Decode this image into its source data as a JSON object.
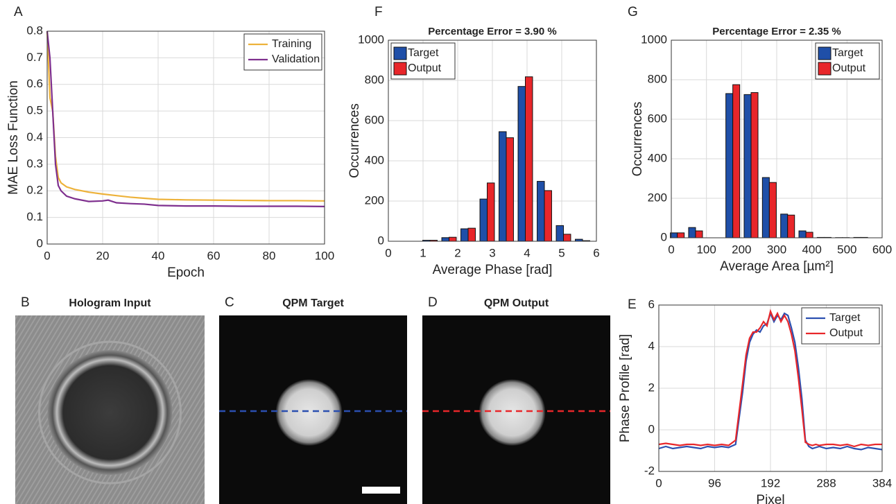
{
  "chart_data": [
    {
      "type": "line",
      "label": "A",
      "xlabel": "Epoch",
      "ylabel": "MAE Loss Function",
      "xlim": [
        0,
        100
      ],
      "xticks": [
        0,
        20,
        40,
        60,
        80,
        100
      ],
      "ylim": [
        0,
        0.8
      ],
      "yticks": [
        0,
        0.1,
        0.2,
        0.3,
        0.4,
        0.5,
        0.6,
        0.7,
        0.8
      ],
      "grid": true,
      "legend": "upper right",
      "series": [
        {
          "name": "Training",
          "color": "#edb23a",
          "x": [
            0,
            1,
            2,
            3,
            4,
            5,
            7,
            10,
            15,
            20,
            25,
            30,
            35,
            40,
            50,
            60,
            70,
            80,
            90,
            100
          ],
          "values": [
            0.8,
            0.55,
            0.5,
            0.33,
            0.25,
            0.23,
            0.215,
            0.205,
            0.195,
            0.188,
            0.182,
            0.176,
            0.172,
            0.168,
            0.166,
            0.165,
            0.164,
            0.163,
            0.163,
            0.162
          ]
        },
        {
          "name": "Validation",
          "color": "#7e2f8e",
          "x": [
            0,
            1,
            2,
            3,
            4,
            5,
            7,
            10,
            15,
            20,
            22,
            25,
            30,
            35,
            40,
            50,
            60,
            70,
            80,
            90,
            100
          ],
          "values": [
            0.8,
            0.7,
            0.5,
            0.3,
            0.22,
            0.2,
            0.18,
            0.17,
            0.16,
            0.162,
            0.165,
            0.155,
            0.152,
            0.15,
            0.145,
            0.143,
            0.143,
            0.142,
            0.142,
            0.142,
            0.141
          ]
        }
      ]
    },
    {
      "type": "bar",
      "label": "F",
      "title": "Percentage Error = 3.90 %",
      "xlabel": "Average Phase [rad]",
      "ylabel": "Occurrences",
      "xlim": [
        0,
        6
      ],
      "xticks": [
        0,
        1,
        2,
        3,
        4,
        5,
        6
      ],
      "ylim": [
        0,
        1000
      ],
      "yticks": [
        0,
        200,
        400,
        600,
        800,
        1000
      ],
      "grid": true,
      "legend": "upper left",
      "x": [
        1.2,
        1.75,
        2.3,
        2.85,
        3.4,
        3.95,
        4.5,
        5.05,
        5.6
      ],
      "series": [
        {
          "name": "Target",
          "color": "#1f4fa8",
          "values": [
            5,
            18,
            62,
            210,
            545,
            770,
            298,
            78,
            10
          ]
        },
        {
          "name": "Output",
          "color": "#e8262a",
          "values": [
            5,
            20,
            65,
            290,
            515,
            818,
            252,
            35,
            3
          ]
        }
      ]
    },
    {
      "type": "bar",
      "label": "G",
      "title": "Percentage Error = 2.35 %",
      "xlabel": "Average Area [µm²]",
      "ylabel": "Occurrences",
      "xlim": [
        0,
        600
      ],
      "xticks": [
        0,
        100,
        200,
        300,
        400,
        500,
        600
      ],
      "ylim": [
        0,
        1000
      ],
      "yticks": [
        0,
        200,
        400,
        600,
        800,
        1000
      ],
      "grid": true,
      "legend": "upper right",
      "x": [
        17,
        69,
        175,
        227,
        279,
        331,
        383,
        435,
        487,
        539
      ],
      "series": [
        {
          "name": "Target",
          "color": "#1f4fa8",
          "values": [
            25,
            52,
            730,
            725,
            305,
            120,
            35,
            2,
            1,
            2
          ]
        },
        {
          "name": "Output",
          "color": "#e8262a",
          "values": [
            25,
            35,
            775,
            735,
            280,
            115,
            28,
            2,
            1,
            2
          ]
        }
      ]
    },
    {
      "type": "image",
      "label": "B",
      "title": "Hologram Input",
      "style": "hologram"
    },
    {
      "type": "image",
      "label": "C",
      "title": "QPM Target",
      "style": "phase",
      "line_color": "#2b4fb0",
      "scale_bar": true
    },
    {
      "type": "image",
      "label": "D",
      "title": "QPM Output",
      "style": "phase",
      "line_color": "#e8262a",
      "scale_bar": false
    },
    {
      "type": "line",
      "label": "E",
      "xlabel": "Pixel",
      "ylabel": "Phase Profile [rad]",
      "xlim": [
        0,
        384
      ],
      "xticks": [
        0,
        96,
        192,
        288,
        384
      ],
      "ylim": [
        -2,
        6
      ],
      "yticks": [
        -2,
        0,
        2,
        4,
        6
      ],
      "grid": true,
      "legend": "upper right",
      "series": [
        {
          "name": "Target",
          "color": "#2b4fb0",
          "x": [
            0,
            12,
            24,
            36,
            48,
            60,
            72,
            84,
            96,
            108,
            120,
            132,
            144,
            150,
            156,
            162,
            168,
            174,
            180,
            186,
            192,
            198,
            204,
            210,
            216,
            222,
            228,
            234,
            240,
            246,
            252,
            258,
            264,
            270,
            276,
            288,
            300,
            312,
            324,
            336,
            348,
            360,
            372,
            384
          ],
          "values": [
            -0.9,
            -0.8,
            -0.9,
            -0.85,
            -0.8,
            -0.85,
            -0.9,
            -0.8,
            -0.85,
            -0.8,
            -0.85,
            -0.7,
            1.8,
            3.3,
            4.2,
            4.6,
            4.8,
            4.7,
            5.0,
            5.1,
            5.6,
            5.2,
            5.5,
            5.3,
            5.6,
            5.5,
            4.9,
            4.2,
            3.0,
            1.5,
            -0.5,
            -0.8,
            -0.9,
            -0.85,
            -0.8,
            -0.9,
            -0.85,
            -0.9,
            -0.8,
            -0.9,
            -0.95,
            -0.85,
            -0.9,
            -0.95
          ]
        },
        {
          "name": "Output",
          "color": "#e8262a",
          "x": [
            0,
            12,
            24,
            36,
            48,
            60,
            72,
            84,
            96,
            108,
            120,
            132,
            144,
            150,
            156,
            162,
            168,
            174,
            180,
            186,
            192,
            198,
            204,
            210,
            216,
            222,
            228,
            234,
            240,
            246,
            252,
            258,
            264,
            270,
            276,
            288,
            300,
            312,
            324,
            336,
            348,
            360,
            372,
            384
          ],
          "values": [
            -0.7,
            -0.65,
            -0.7,
            -0.75,
            -0.7,
            -0.7,
            -0.75,
            -0.7,
            -0.75,
            -0.7,
            -0.75,
            -0.5,
            2.2,
            3.6,
            4.4,
            4.7,
            4.7,
            4.9,
            5.2,
            5.0,
            5.7,
            5.3,
            5.6,
            5.2,
            5.5,
            5.2,
            4.6,
            3.8,
            2.5,
            1.0,
            -0.6,
            -0.7,
            -0.75,
            -0.7,
            -0.75,
            -0.7,
            -0.7,
            -0.75,
            -0.7,
            -0.8,
            -0.7,
            -0.75,
            -0.7,
            -0.7
          ]
        }
      ]
    }
  ]
}
